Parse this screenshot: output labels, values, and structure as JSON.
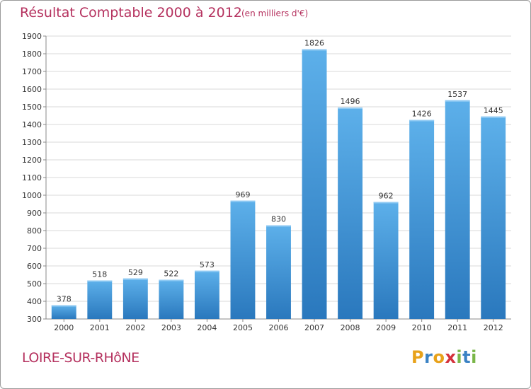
{
  "chart_data": {
    "type": "bar",
    "title": "Résultat Comptable 2000 à 2012",
    "subtitle": "(en milliers d'€)",
    "categories": [
      "2000",
      "2001",
      "2002",
      "2003",
      "2004",
      "2005",
      "2006",
      "2007",
      "2008",
      "2009",
      "2010",
      "2011",
      "2012"
    ],
    "values": [
      378,
      518,
      529,
      522,
      573,
      969,
      830,
      1826,
      1496,
      962,
      1426,
      1537,
      1445
    ],
    "ylim": [
      300,
      1900
    ],
    "yticks": [
      300,
      400,
      500,
      600,
      700,
      800,
      900,
      1000,
      1100,
      1200,
      1300,
      1400,
      1500,
      1600,
      1700,
      1800,
      1900
    ],
    "grid": true,
    "xlabel": "",
    "ylabel": ""
  },
  "footer": {
    "town": "LOIRE-SUR-RHôNE"
  },
  "logo": {
    "letters": [
      "P",
      "r",
      "o",
      "x",
      "i",
      "t",
      "i"
    ],
    "colors": [
      "#e8a21a",
      "#3b82c4",
      "#e8a21a",
      "#d4313b",
      "#7ab648",
      "#3b82c4",
      "#7ab648"
    ]
  },
  "colors": {
    "bar_light": "#5db0ea",
    "bar_dark": "#2a78bd",
    "title": "#b5325f",
    "grid": "#d9d9d9",
    "axis": "#888888",
    "text": "#333333"
  }
}
